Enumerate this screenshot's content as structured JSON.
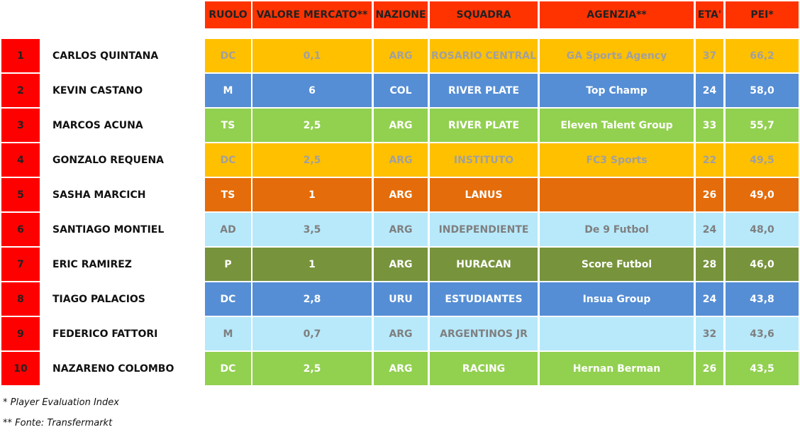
{
  "table": {
    "header": [
      "RUOLO",
      "VALORE MERCATO**",
      "NAZIONE",
      "SQUADRA",
      "AGENZIA**",
      "ETA'",
      "PEI*"
    ],
    "rows": [
      {
        "rank": 1,
        "name": "CARLOS QUINTANA",
        "cells": [
          "DC",
          "0,1",
          "ARG",
          "ROSARIO CENTRAL",
          "GA Sports Agency",
          37,
          "66,2"
        ],
        "color": "#ffc000",
        "text_color": "#a0a0a0"
      },
      {
        "rank": 2,
        "name": "KEVIN CASTANO",
        "cells": [
          "M",
          6,
          "COL",
          "RIVER PLATE",
          "Top Champ",
          24,
          "58,0"
        ],
        "color": "#558ed5",
        "text_color": "#ffffff"
      },
      {
        "rank": 3,
        "name": "MARCOS ACUNA",
        "cells": [
          "TS",
          "2,5",
          "ARG",
          "RIVER PLATE",
          "Eleven Talent Group",
          33,
          "55,7"
        ],
        "color": "#92d050",
        "text_color": "#ffffff"
      },
      {
        "rank": 4,
        "name": "GONZALO REQUENA",
        "cells": [
          "DC",
          "2,5",
          "ARG",
          "INSTITUTO",
          "FC3 Sports",
          22,
          "49,5"
        ],
        "color": "#ffc000",
        "text_color": "#a0a0a0"
      },
      {
        "rank": 5,
        "name": "SASHA MARCICH",
        "cells": [
          "TS",
          1,
          "ARG",
          "LANUS",
          null,
          26,
          "49,0"
        ],
        "color": "#e46c0a",
        "text_color": "#ffffff"
      },
      {
        "rank": 6,
        "name": "SANTIAGO MONTIEL",
        "cells": [
          "AD",
          "3,5",
          "ARG",
          "INDEPENDIENTE",
          "De 9 Futbol",
          24,
          "48,0"
        ],
        "color": "#b7e9fb",
        "text_color": "#7f7f7f"
      },
      {
        "rank": 7,
        "name": "ERIC RAMIREZ",
        "cells": [
          "P",
          1,
          "ARG",
          "HURACAN",
          "Score Futbol",
          28,
          "46,0"
        ],
        "color": "#77933c",
        "text_color": "#ffffff"
      },
      {
        "rank": 8,
        "name": "TIAGO PALACIOS",
        "cells": [
          "DC",
          "2,8",
          "URU",
          "ESTUDIANTES",
          "Insua Group",
          24,
          "43,8"
        ],
        "color": "#558ed5",
        "text_color": "#ffffff"
      },
      {
        "rank": 9,
        "name": "FEDERICO FATTORI",
        "cells": [
          "M",
          "0,7",
          "ARG",
          "ARGENTINOS JR",
          null,
          32,
          "43,6"
        ],
        "color": "#b7e9fb",
        "text_color": "#7f7f7f"
      },
      {
        "rank": 10,
        "name": "NAZARENO COLOMBO",
        "cells": [
          "DC",
          "2,5",
          "ARG",
          "RACING",
          "Hernan Berman",
          26,
          "43,5"
        ],
        "color": "#92d050",
        "text_color": "#ffffff"
      }
    ]
  },
  "footnotes": [
    "* Player Evaluation Index",
    "** Fonte: Transfermarkt"
  ]
}
